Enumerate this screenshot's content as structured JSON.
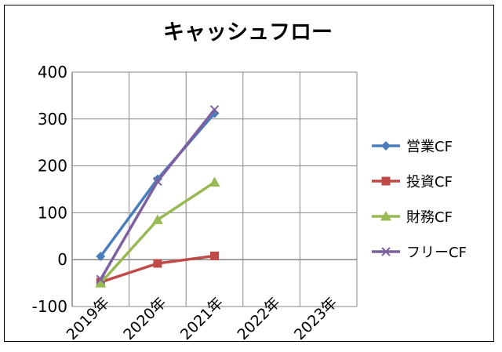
{
  "chart_data": {
    "type": "line",
    "title": "キャッシュフロー",
    "xlabel": "",
    "ylabel": "",
    "categories": [
      "2019年",
      "2020年",
      "2021年",
      "2022年",
      "2023年"
    ],
    "ylim": [
      -100,
      400
    ],
    "yticks": [
      400,
      300,
      200,
      100,
      0,
      -100
    ],
    "grid": true,
    "legend_position": "right",
    "series": [
      {
        "name": "営業CF",
        "values": [
          7,
          172,
          312,
          null,
          null
        ],
        "color": "#4a7ebb",
        "marker": "diamond"
      },
      {
        "name": "投資CF",
        "values": [
          -48,
          -8,
          8,
          null,
          null
        ],
        "color": "#be4b48",
        "marker": "square"
      },
      {
        "name": "財務CF",
        "values": [
          -50,
          85,
          165,
          null,
          null
        ],
        "color": "#98b954",
        "marker": "triangle"
      },
      {
        "name": "フリーCF",
        "values": [
          -42,
          167,
          320,
          null,
          null
        ],
        "color": "#7d60a0",
        "marker": "x"
      }
    ]
  }
}
